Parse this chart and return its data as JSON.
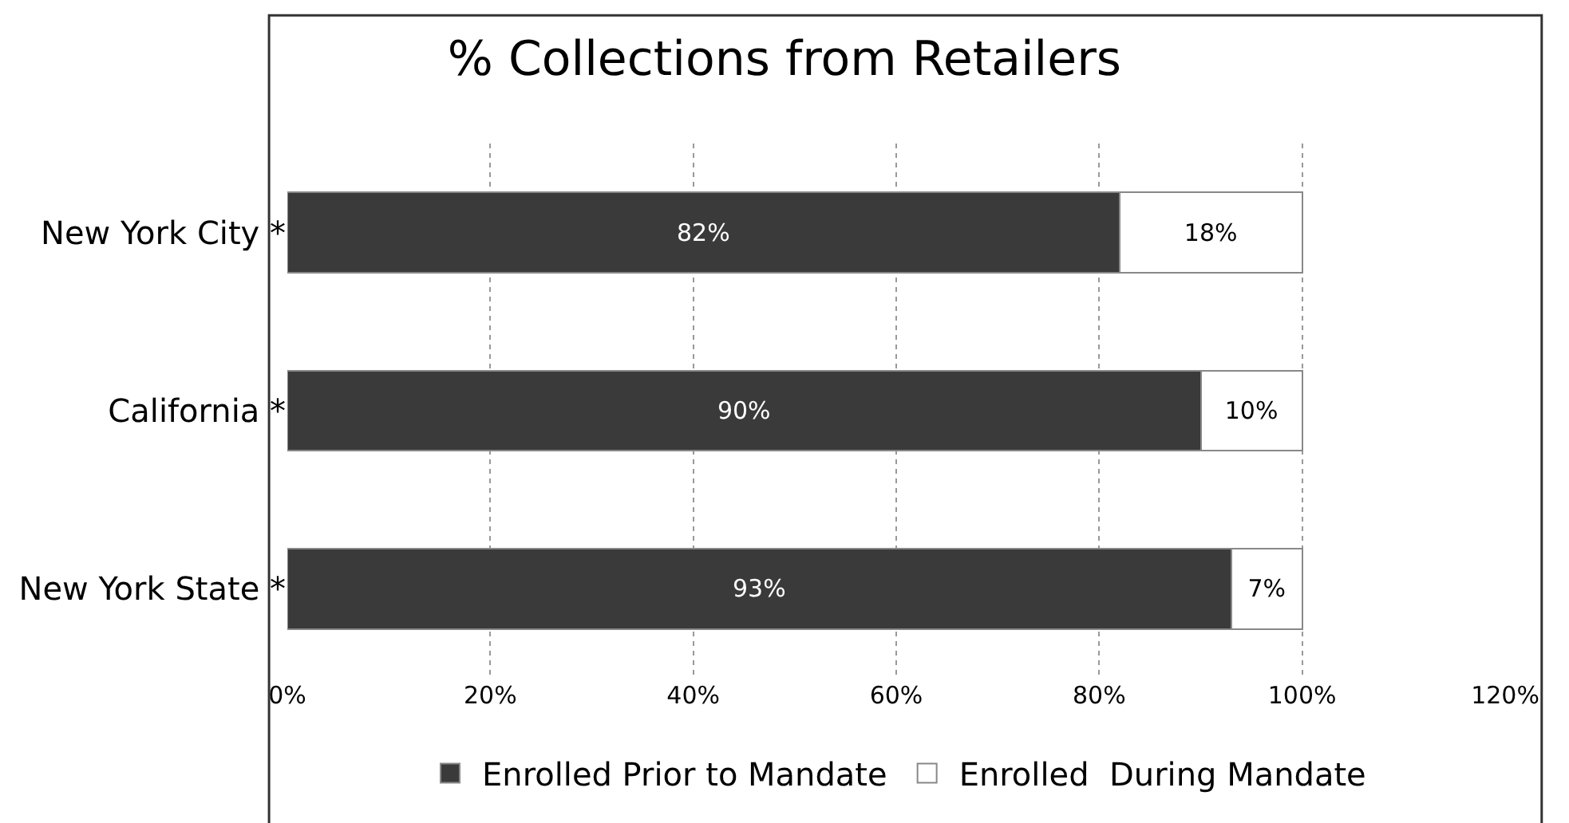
{
  "chart_data": {
    "type": "bar",
    "orientation": "horizontal",
    "stacked": true,
    "title": "% Collections from Retailers",
    "categories": [
      "New York City *",
      "California *",
      "New York State *"
    ],
    "series": [
      {
        "name": "Enrolled Prior to Mandate",
        "color": "#3a3a3a",
        "values": [
          82,
          90,
          93
        ],
        "value_labels": [
          "82%",
          "90%",
          "93%"
        ]
      },
      {
        "name": "Enrolled  During Mandate",
        "color": "#ffffff",
        "values": [
          18,
          10,
          7
        ],
        "value_labels": [
          "18%",
          "10%",
          "7%"
        ]
      }
    ],
    "xlim": [
      0,
      120
    ],
    "xticks": [
      {
        "value": 0,
        "label": "0%"
      },
      {
        "value": 20,
        "label": "20%"
      },
      {
        "value": 40,
        "label": "40%"
      },
      {
        "value": 60,
        "label": "60%"
      },
      {
        "value": 80,
        "label": "80%"
      },
      {
        "value": 100,
        "label": "100%"
      },
      {
        "value": 120,
        "label": "120%"
      }
    ],
    "grid": "x",
    "legend": "bottom"
  }
}
